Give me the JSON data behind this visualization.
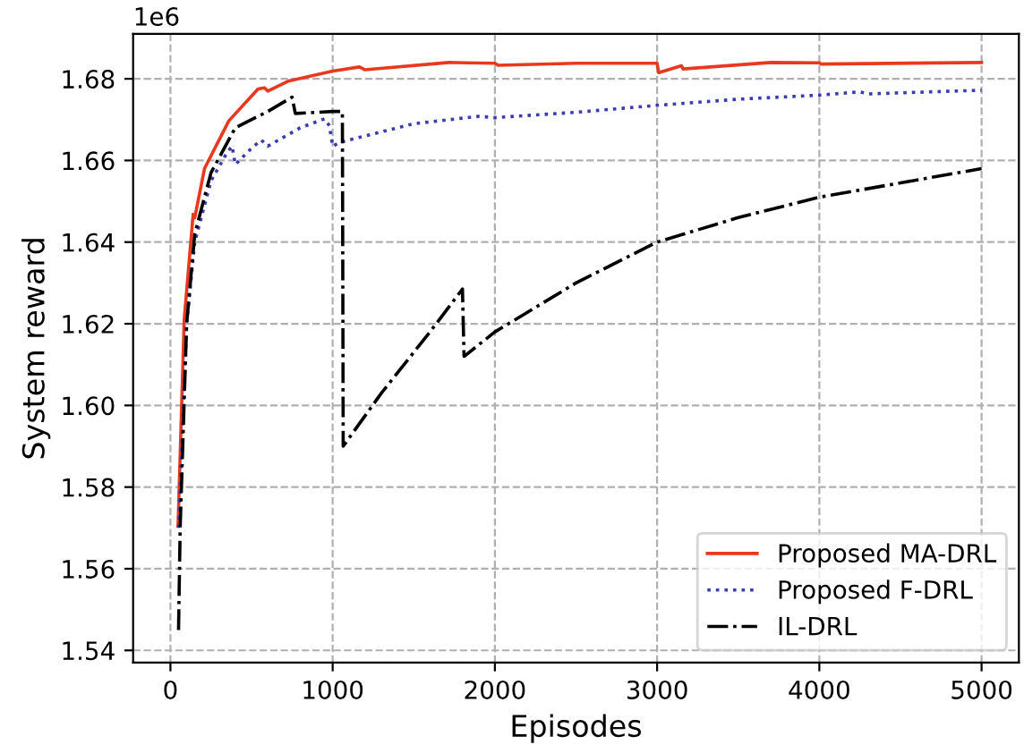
{
  "chart_data": {
    "type": "line",
    "xlabel": "Episodes",
    "ylabel": "System reward",
    "annotations": [
      "1e6"
    ],
    "xlim": [
      -230,
      5230
    ],
    "ylim": [
      1.537,
      1.691
    ],
    "xticks": [
      0,
      1000,
      2000,
      3000,
      4000,
      5000
    ],
    "yticks": [
      1.54,
      1.56,
      1.58,
      {
        "value": 1.6,
        "label": "1.60"
      },
      1.62,
      1.64,
      1.66,
      1.68
    ],
    "grid": true,
    "legend": "bottom right",
    "series": [
      {
        "name": "Proposed MA-DRL",
        "color": "#e8391e",
        "line_style": "solid",
        "x": [
          47,
          85,
          140,
          150,
          210,
          360,
          540,
          580,
          600,
          725,
          1000,
          1165,
          1200,
          1715,
          2000,
          2020,
          2500,
          3000,
          3010,
          3150,
          3160,
          3700,
          4000,
          4010,
          5000
        ],
        "values": [
          1.5705,
          1.621,
          1.6468,
          1.646,
          1.658,
          1.6697,
          1.6775,
          1.6778,
          1.677,
          1.6794,
          1.6819,
          1.6829,
          1.6822,
          1.684,
          1.6838,
          1.6833,
          1.6838,
          1.6838,
          1.6815,
          1.6832,
          1.6824,
          1.684,
          1.6839,
          1.6836,
          1.684
        ]
      },
      {
        "name": "Proposed F-DRL",
        "color": "#3b3bb3",
        "line_style": "dotted",
        "x": [
          50,
          100,
          150,
          250,
          350,
          380,
          400,
          500,
          560,
          600,
          800,
          950,
          980,
          1000,
          1050,
          1200,
          1500,
          1900,
          2000,
          2500,
          3000,
          3500,
          4000,
          4250,
          4300,
          5000
        ],
        "values": [
          1.57,
          1.62,
          1.64,
          1.655,
          1.662,
          1.6635,
          1.659,
          1.663,
          1.665,
          1.6635,
          1.668,
          1.6702,
          1.6685,
          1.6635,
          1.6645,
          1.666,
          1.669,
          1.6708,
          1.6705,
          1.6718,
          1.6735,
          1.675,
          1.676,
          1.6768,
          1.6763,
          1.6772
        ]
      },
      {
        "name": "IL-DRL",
        "color": "#000000",
        "line_style": "dashdot",
        "x": [
          50,
          60,
          100,
          150,
          250,
          400,
          600,
          750,
          770,
          1000,
          1060,
          1065,
          1300,
          1600,
          1800,
          1810,
          2000,
          2500,
          3000,
          3500,
          4000,
          4500,
          5000
        ],
        "values": [
          1.545,
          1.57,
          1.62,
          1.642,
          1.657,
          1.668,
          1.672,
          1.6755,
          1.6715,
          1.672,
          1.672,
          1.59,
          1.603,
          1.618,
          1.6285,
          1.612,
          1.618,
          1.63,
          1.64,
          1.646,
          1.651,
          1.6545,
          1.658
        ]
      }
    ]
  }
}
